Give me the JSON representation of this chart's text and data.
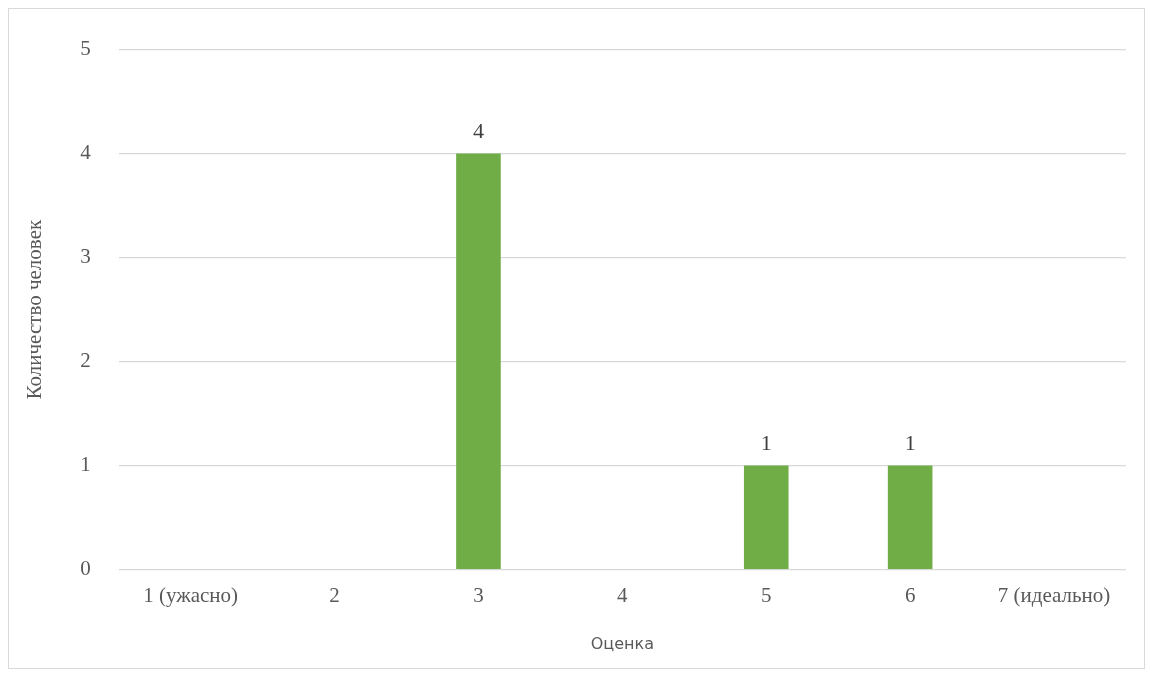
{
  "chart_data": {
    "type": "bar",
    "xlabel": "Оценка",
    "ylabel": "Количество человек",
    "categories": [
      "1 (ужасно)",
      "2",
      "3",
      "4",
      "5",
      "6",
      "7 (идеально)"
    ],
    "values": [
      0,
      0,
      4,
      0,
      1,
      1,
      0
    ],
    "value_labels": [
      null,
      null,
      "4",
      null,
      "1",
      "1",
      null
    ],
    "color": "#70ad47",
    "ylim": [
      0,
      5
    ],
    "yticks": [
      0,
      1,
      2,
      3,
      4,
      5
    ],
    "grid": "y",
    "legend": false
  }
}
